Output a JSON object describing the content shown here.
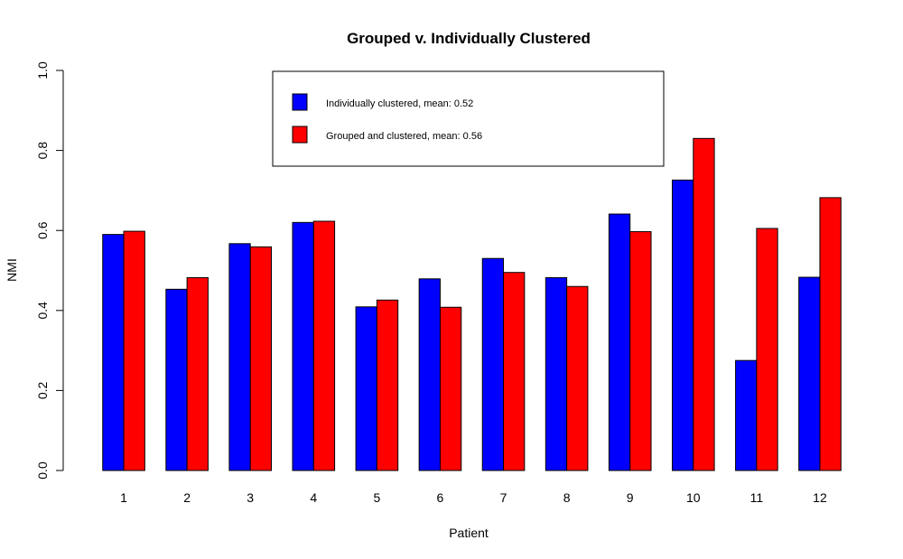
{
  "chart_data": {
    "type": "bar",
    "title": "Grouped v. Individually Clustered",
    "xlabel": "Patient",
    "ylabel": "NMI",
    "ylim": [
      0,
      1
    ],
    "yticks": [
      "0.0",
      "0.2",
      "0.4",
      "0.6",
      "0.8",
      "1.0"
    ],
    "categories": [
      "1",
      "2",
      "3",
      "4",
      "5",
      "6",
      "7",
      "8",
      "9",
      "10",
      "11",
      "12"
    ],
    "series": [
      {
        "name": "Individually clustered, mean: 0.52",
        "color": "#0000ff",
        "values": [
          0.59,
          0.453,
          0.567,
          0.62,
          0.409,
          0.479,
          0.53,
          0.482,
          0.641,
          0.726,
          0.275,
          0.483
        ]
      },
      {
        "name": "Grouped and clustered, mean: 0.56",
        "color": "#ff0000",
        "values": [
          0.598,
          0.482,
          0.559,
          0.623,
          0.426,
          0.408,
          0.495,
          0.46,
          0.597,
          0.83,
          0.605,
          0.682
        ]
      }
    ],
    "grid": false,
    "legend_position": "top-center"
  }
}
